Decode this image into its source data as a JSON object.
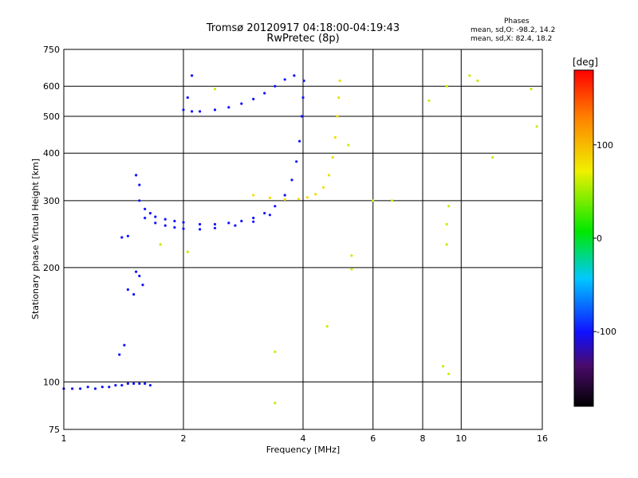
{
  "header": {
    "title_line1": "Tromsø 20120917 04:18:00-04:19:43",
    "title_line2": "RwPretec (8p)"
  },
  "phases_box": {
    "heading": "Phases",
    "line_o": "mean, sd,O: -98.2, 14.2",
    "line_x": "mean, sd,X: 82.4, 18.2"
  },
  "chart_data": {
    "type": "scatter",
    "xlabel": "Frequency [MHz]",
    "ylabel": "Stationary phase Virtual Height [km]",
    "x_scale": "log",
    "y_scale": "log",
    "xlim": [
      1,
      16
    ],
    "ylim": [
      75,
      750
    ],
    "x_ticks": [
      1,
      2,
      4,
      6,
      8,
      10,
      16
    ],
    "x_tick_labels": [
      "1",
      "2",
      "4",
      "6",
      "8",
      "10",
      "16"
    ],
    "y_ticks": [
      75,
      100,
      200,
      300,
      400,
      500,
      600,
      750
    ],
    "y_tick_labels": [
      "75",
      "100",
      "200",
      "300",
      "400",
      "500",
      "600",
      "750"
    ],
    "grid": true,
    "colorbar": {
      "label": "[deg]",
      "range": [
        -180,
        180
      ],
      "ticks": [
        100,
        0,
        -100
      ],
      "tick_labels": [
        "100",
        "0",
        "-100"
      ]
    },
    "traces": [
      {
        "part": "E-layer echoes",
        "phase": -100,
        "points": [
          [
            1.0,
            96
          ],
          [
            1.05,
            96
          ],
          [
            1.1,
            96
          ],
          [
            1.15,
            97
          ],
          [
            1.2,
            96
          ],
          [
            1.25,
            97
          ],
          [
            1.3,
            97
          ],
          [
            1.35,
            98
          ],
          [
            1.4,
            98
          ],
          [
            1.45,
            99
          ],
          [
            1.5,
            99
          ],
          [
            1.55,
            99
          ],
          [
            1.6,
            99
          ],
          [
            1.65,
            98
          ]
        ]
      },
      {
        "part": "Low spread",
        "phase": -100,
        "points": [
          [
            1.38,
            118
          ],
          [
            1.42,
            125
          ],
          [
            1.45,
            175
          ],
          [
            1.5,
            170
          ],
          [
            1.52,
            195
          ],
          [
            1.55,
            190
          ],
          [
            1.58,
            180
          ],
          [
            1.4,
            240
          ],
          [
            1.45,
            242
          ],
          [
            1.52,
            350
          ],
          [
            1.55,
            330
          ]
        ]
      },
      {
        "part": "F-layer O-trace",
        "phase": -100,
        "points": [
          [
            1.55,
            300
          ],
          [
            1.6,
            285
          ],
          [
            1.65,
            278
          ],
          [
            1.7,
            272
          ],
          [
            1.8,
            268
          ],
          [
            1.9,
            265
          ],
          [
            2.0,
            263
          ],
          [
            2.2,
            260
          ],
          [
            2.4,
            260
          ],
          [
            2.6,
            262
          ],
          [
            2.8,
            265
          ],
          [
            3.0,
            270
          ],
          [
            3.2,
            278
          ],
          [
            3.4,
            290
          ],
          [
            3.6,
            310
          ],
          [
            3.75,
            340
          ],
          [
            3.85,
            380
          ],
          [
            3.92,
            430
          ],
          [
            3.97,
            500
          ],
          [
            4.0,
            560
          ],
          [
            4.02,
            620
          ]
        ]
      },
      {
        "part": "F-layer lower trace",
        "phase": -100,
        "points": [
          [
            1.6,
            270
          ],
          [
            1.7,
            262
          ],
          [
            1.8,
            258
          ],
          [
            1.9,
            255
          ],
          [
            2.0,
            253
          ],
          [
            2.2,
            252
          ],
          [
            2.4,
            254
          ],
          [
            2.7,
            258
          ],
          [
            3.0,
            264
          ],
          [
            3.3,
            275
          ]
        ]
      },
      {
        "part": "F-layer X-trace",
        "phase": 82,
        "points": [
          [
            3.0,
            310
          ],
          [
            3.3,
            305
          ],
          [
            3.6,
            302
          ],
          [
            3.9,
            303
          ],
          [
            4.1,
            306
          ],
          [
            4.3,
            312
          ],
          [
            4.5,
            325
          ],
          [
            4.65,
            350
          ],
          [
            4.75,
            390
          ],
          [
            4.82,
            440
          ],
          [
            4.88,
            500
          ],
          [
            4.92,
            560
          ],
          [
            4.95,
            620
          ]
        ]
      },
      {
        "part": "Upper sporadic",
        "phase": -100,
        "points": [
          [
            2.0,
            520
          ],
          [
            2.1,
            515
          ],
          [
            2.2,
            515
          ],
          [
            2.4,
            520
          ],
          [
            2.6,
            528
          ],
          [
            2.8,
            540
          ],
          [
            3.0,
            555
          ],
          [
            3.2,
            575
          ],
          [
            3.4,
            600
          ],
          [
            3.6,
            625
          ],
          [
            3.8,
            640
          ],
          [
            2.05,
            560
          ],
          [
            2.1,
            640
          ]
        ]
      },
      {
        "part": "Scattered echoes",
        "phase": 60,
        "points": [
          [
            8.3,
            550
          ],
          [
            9.2,
            600
          ],
          [
            9.2,
            230
          ],
          [
            9.2,
            260
          ],
          [
            9.3,
            290
          ],
          [
            9.0,
            110
          ],
          [
            9.3,
            105
          ],
          [
            10.5,
            640
          ],
          [
            11.0,
            620
          ],
          [
            12.0,
            390
          ],
          [
            15.0,
            590
          ],
          [
            15.5,
            470
          ],
          [
            5.2,
            420
          ],
          [
            5.3,
            215
          ],
          [
            5.3,
            198
          ],
          [
            6.0,
            300
          ],
          [
            6.7,
            300
          ],
          [
            4.6,
            140
          ],
          [
            3.4,
            88
          ],
          [
            3.4,
            120
          ],
          [
            2.4,
            590
          ],
          [
            1.75,
            230
          ],
          [
            2.05,
            220
          ]
        ]
      }
    ]
  }
}
